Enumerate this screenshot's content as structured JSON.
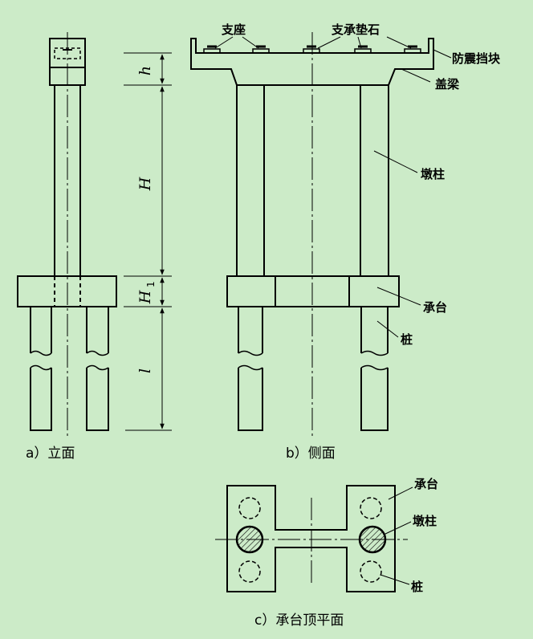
{
  "colors": {
    "background": "#ccebc8",
    "line": "#000000"
  },
  "figures": {
    "elevation": {
      "caption": "a）立面",
      "dims": {
        "h": "h",
        "H": "H",
        "H1_main": "H",
        "H1_sub": "1",
        "l": "l"
      }
    },
    "side": {
      "caption": "b）侧面",
      "labels": {
        "bearing": "支座",
        "bearing_pad": "支承垫石",
        "seismic_block": "防震挡块",
        "cap_beam": "盖梁",
        "pier_column": "墩柱",
        "pile_cap": "承台",
        "pile": "桩"
      }
    },
    "plan": {
      "caption": "c）承台顶平面",
      "labels": {
        "pile_cap": "承台",
        "pier_column": "墩柱",
        "pile": "桩"
      }
    }
  }
}
